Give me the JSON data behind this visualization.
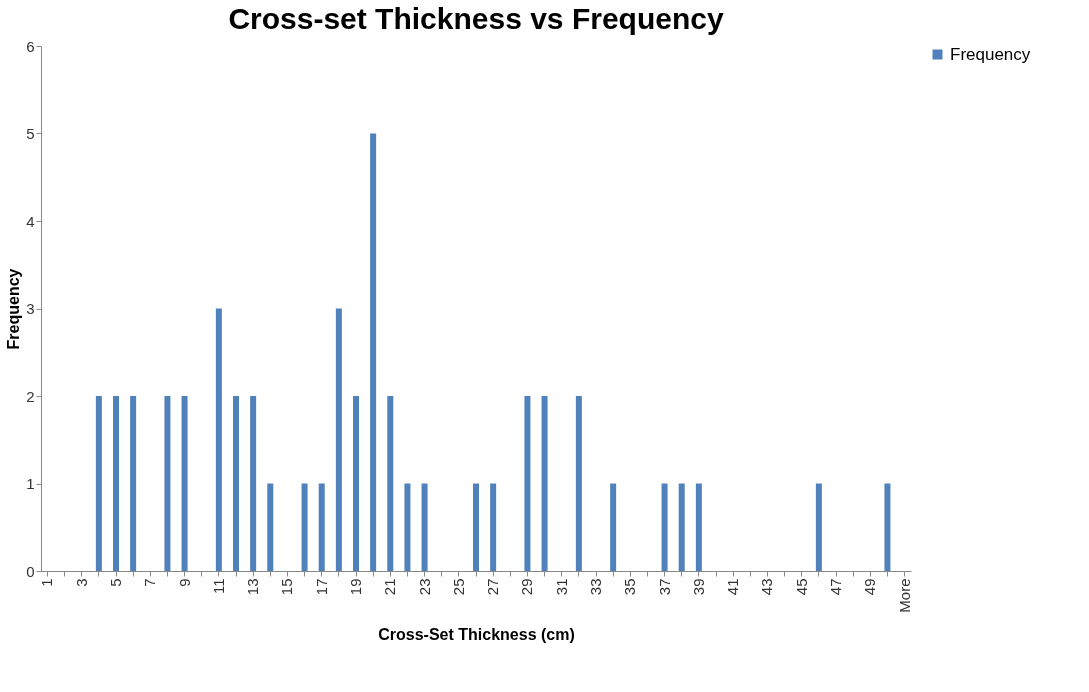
{
  "chart_data": {
    "type": "bar",
    "title": "Cross-set Thickness vs Frequency",
    "xlabel": "Cross-Set Thickness (cm)",
    "ylabel": "Frequency",
    "categories": [
      "1",
      null,
      "3",
      null,
      "5",
      null,
      "7",
      null,
      "9",
      null,
      "11",
      null,
      "13",
      null,
      "15",
      null,
      "17",
      null,
      "19",
      null,
      "21",
      null,
      "23",
      null,
      "25",
      null,
      "27",
      null,
      "29",
      null,
      "31",
      null,
      "33",
      null,
      "35",
      null,
      "37",
      null,
      "39",
      null,
      "41",
      null,
      "43",
      null,
      "45",
      null,
      "47",
      null,
      "49",
      null,
      "More"
    ],
    "series": [
      {
        "name": "Frequency",
        "color": "#4f81bd",
        "values": [
          0,
          0,
          0,
          2,
          2,
          2,
          0,
          2,
          2,
          0,
          3,
          2,
          2,
          1,
          0,
          1,
          1,
          3,
          2,
          5,
          2,
          1,
          1,
          0,
          0,
          1,
          1,
          0,
          2,
          2,
          0,
          2,
          0,
          1,
          0,
          0,
          1,
          1,
          1,
          0,
          0,
          0,
          0,
          0,
          0,
          1,
          0,
          0,
          0,
          1,
          0
        ]
      }
    ],
    "ylim": [
      0,
      6
    ],
    "yticks": [
      0,
      1,
      2,
      3,
      4,
      5,
      6
    ],
    "grid": false,
    "legend": "right"
  }
}
